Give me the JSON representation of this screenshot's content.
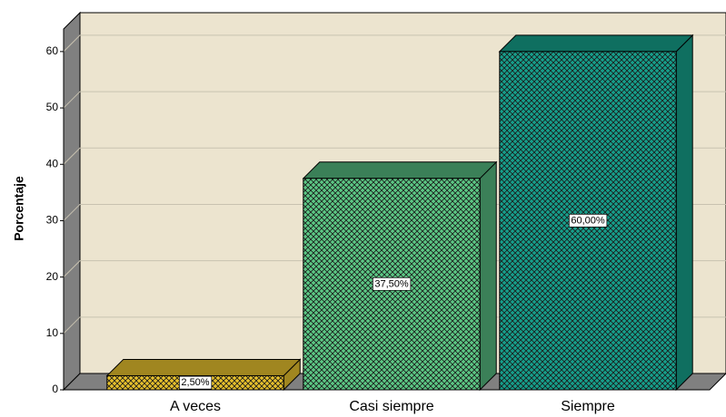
{
  "chart_data": {
    "type": "bar3d",
    "y_label": "Porcentaje",
    "categories": [
      "A veces",
      "Casi siempre",
      "Siempre"
    ],
    "values": [
      2.5,
      37.5,
      60
    ],
    "value_labels": [
      "2,50%",
      "37,50%",
      "60,00%"
    ],
    "colors": [
      "#e6c02c",
      "#5cc885",
      "#169f8b"
    ],
    "top_colors": [
      "#a08620",
      "#3b8058",
      "#0f6f60"
    ],
    "ylim": [
      0,
      64
    ],
    "yticks": [
      0,
      10,
      20,
      30,
      40,
      50,
      60
    ],
    "grid": true
  }
}
